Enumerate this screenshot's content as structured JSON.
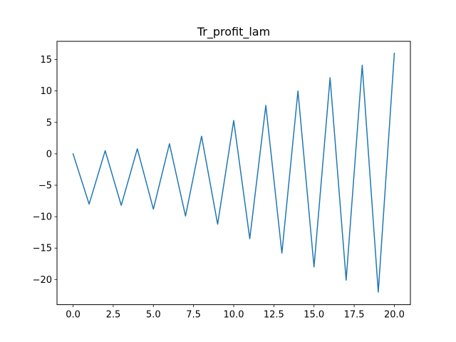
{
  "chart_data": {
    "type": "line",
    "title": "Tr_profit_lam",
    "xlabel": "",
    "ylabel": "",
    "xlim": [
      -1.0,
      21.0
    ],
    "ylim": [
      -24.0,
      17.9
    ],
    "grid": false,
    "x_ticks": [
      0.0,
      2.5,
      5.0,
      7.5,
      10.0,
      12.5,
      15.0,
      17.5,
      20.0
    ],
    "x_tick_labels": [
      "0.0",
      "2.5",
      "5.0",
      "7.5",
      "10.0",
      "12.5",
      "15.0",
      "17.5",
      "20.0"
    ],
    "y_ticks": [
      -20,
      -15,
      -10,
      -5,
      0,
      5,
      10,
      15
    ],
    "y_tick_labels": [
      "−20",
      "−15",
      "−10",
      "−5",
      "0",
      "5",
      "10",
      "15"
    ],
    "series": [
      {
        "color": "#1f77b4",
        "x": [
          0,
          1,
          2,
          3,
          4,
          5,
          6,
          7,
          8,
          9,
          10,
          11,
          12,
          13,
          14,
          15,
          16,
          17,
          18,
          19,
          20
        ],
        "y": [
          0.0,
          -8.0,
          0.5,
          -8.2,
          0.8,
          -8.8,
          1.6,
          -9.9,
          2.8,
          -11.2,
          5.3,
          -13.5,
          7.7,
          -15.8,
          10.0,
          -18.0,
          12.1,
          -20.1,
          14.1,
          -22.0,
          16.0
        ]
      }
    ]
  }
}
